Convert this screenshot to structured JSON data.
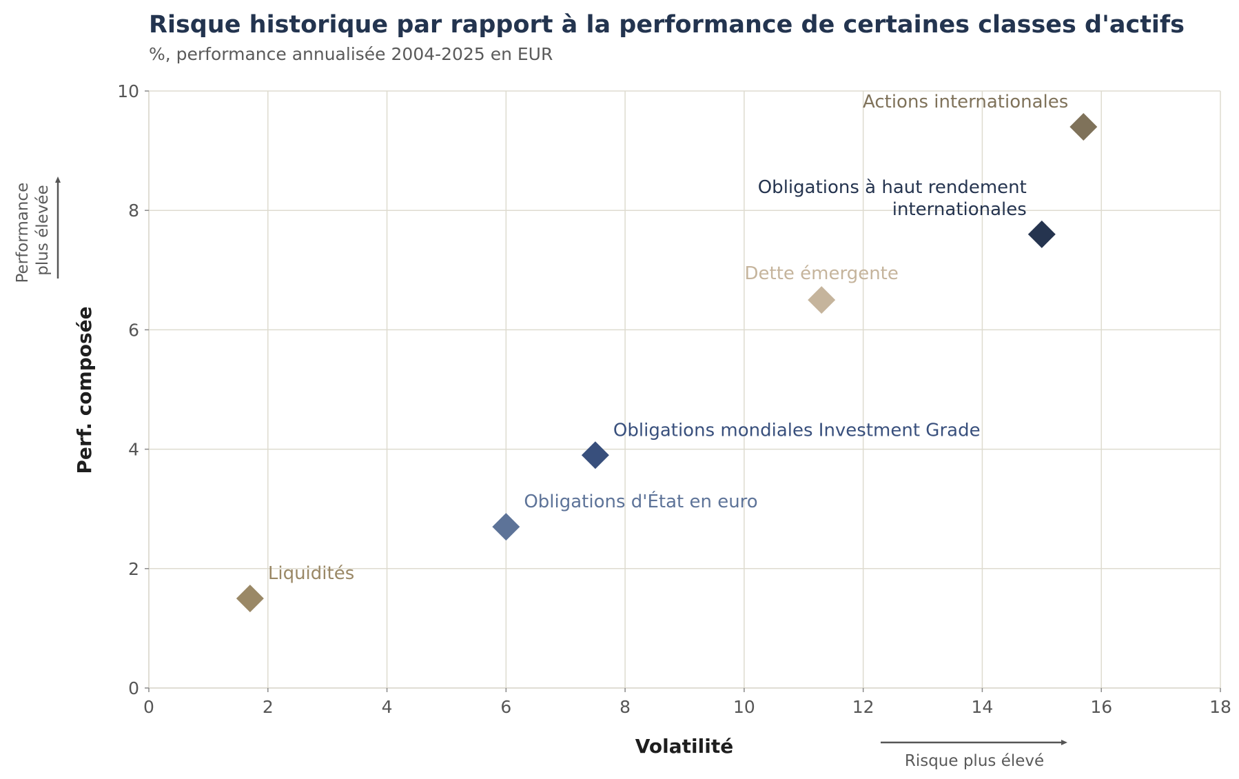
{
  "chart_data": {
    "type": "scatter",
    "title": "Risque historique par rapport à la performance de certaines classes d'actifs",
    "subtitle": "%, performance annualisée 2004-2025 en EUR",
    "xlabel": "Volatilité",
    "ylabel": "Perf. composée",
    "xlim": [
      0,
      18
    ],
    "ylim": [
      0,
      10
    ],
    "xticks": [
      0,
      2,
      4,
      6,
      8,
      10,
      12,
      14,
      16,
      18
    ],
    "yticks": [
      0,
      2,
      4,
      6,
      8,
      10
    ],
    "grid": true,
    "x_hint": "Risque plus élevé",
    "y_hint": [
      "Performance",
      "plus élevée"
    ],
    "points": [
      {
        "label": [
          "Liquidités"
        ],
        "x": 1.7,
        "y": 1.5,
        "color": "#9a8866",
        "label_anchor": "start"
      },
      {
        "label": [
          "Obligations d'État en euro"
        ],
        "x": 6.0,
        "y": 2.7,
        "color": "#5d7398",
        "label_anchor": "start"
      },
      {
        "label": [
          "Obligations mondiales Investment Grade"
        ],
        "x": 7.5,
        "y": 3.9,
        "color": "#384f7c",
        "label_anchor": "start"
      },
      {
        "label": [
          "Dette émergente"
        ],
        "x": 11.3,
        "y": 6.5,
        "color": "#c5b49c",
        "label_anchor": "middle"
      },
      {
        "label": [
          "Obligations à haut rendement",
          "internationales"
        ],
        "x": 15.0,
        "y": 7.6,
        "color": "#25344f",
        "label_anchor": "end"
      },
      {
        "label": [
          "Actions internationales"
        ],
        "x": 15.7,
        "y": 9.4,
        "color": "#7f725a",
        "label_anchor": "end"
      }
    ]
  }
}
